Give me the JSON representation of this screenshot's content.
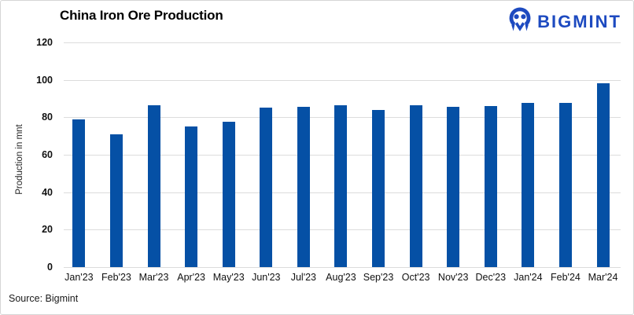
{
  "header": {
    "title": "China Iron Ore Production",
    "brand": "BIGMINT"
  },
  "footer": {
    "source": "Source: Bigmint"
  },
  "chart_data": {
    "type": "bar",
    "title": "China Iron Ore Production",
    "categories": [
      "Jan'23",
      "Feb'23",
      "Mar'23",
      "Apr'23",
      "May'23",
      "Jun'23",
      "Jul'23",
      "Aug'23",
      "Sep'23",
      "Oct'23",
      "Nov'23",
      "Dec'23",
      "Jan'24",
      "Feb'24",
      "Mar'24"
    ],
    "values": [
      79,
      71,
      86.5,
      75,
      77.5,
      85,
      85.5,
      86.5,
      84,
      86.5,
      85.5,
      86,
      87.5,
      87.5,
      98
    ],
    "xlabel": "",
    "ylabel": "Production in mnt",
    "ylim": [
      0,
      120
    ],
    "yticks": [
      0,
      20,
      40,
      60,
      80,
      100,
      120
    ],
    "grid": true,
    "legend_position": "none",
    "bar_color": "#0550a5"
  },
  "colors": {
    "bar": "#0550a5",
    "brand_blue": "#1d4ac0",
    "gridline": "#dcdcdc",
    "border": "#d6d6d6"
  },
  "icons": {
    "brand_logo": "bigmint-owl-m-icon"
  }
}
